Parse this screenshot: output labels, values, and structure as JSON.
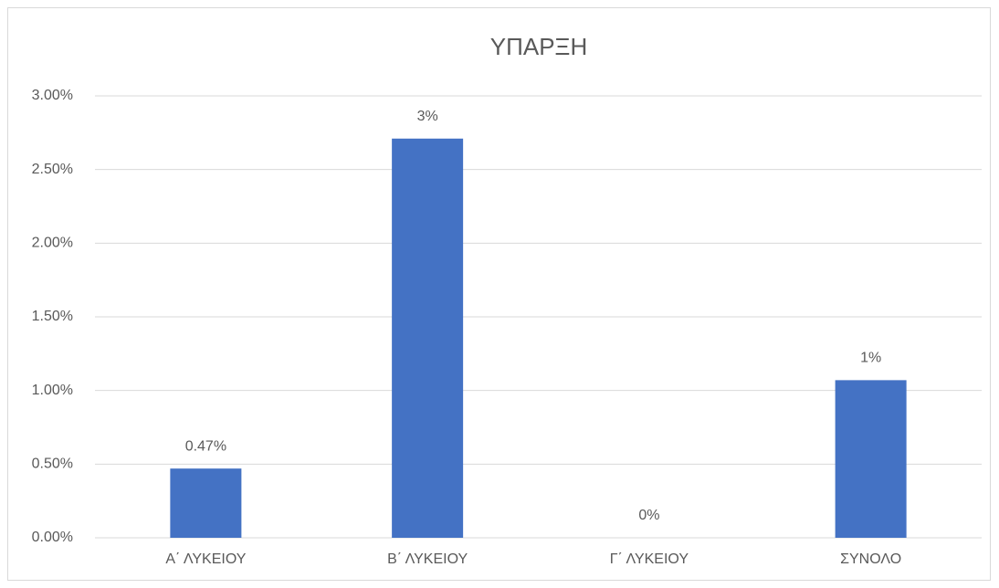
{
  "chart_data": {
    "type": "bar",
    "title": "ΥΠΑΡΞΗ",
    "categories": [
      "Α΄ ΛΥΚΕΙΟΥ",
      "Β΄ ΛΥΚΕΙΟΥ",
      "Γ΄ ΛΥΚΕΙΟΥ",
      "ΣΥΝΟΛΟ"
    ],
    "values": [
      0.47,
      2.71,
      0,
      1.07
    ],
    "value_labels": [
      "0.47%",
      "3%",
      "0%",
      "1%"
    ],
    "color": "#4472c4",
    "ylim": [
      0,
      3
    ],
    "yticks": [
      {
        "value": 0,
        "label": "0.00%"
      },
      {
        "value": 0.5,
        "label": "0.50%"
      },
      {
        "value": 1,
        "label": "1.00%"
      },
      {
        "value": 1.5,
        "label": "1.50%"
      },
      {
        "value": 2,
        "label": "2.00%"
      },
      {
        "value": 2.5,
        "label": "2.50%"
      },
      {
        "value": 3,
        "label": "3.00%"
      }
    ],
    "grid": true
  }
}
